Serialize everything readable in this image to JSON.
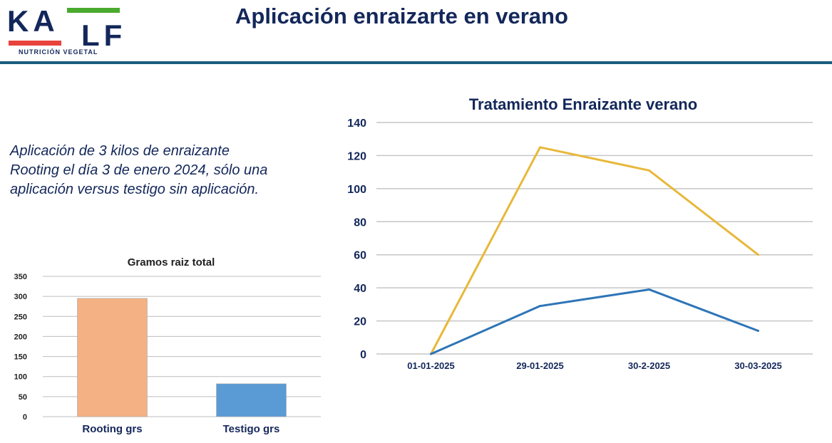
{
  "header": {
    "title": "Aplicación enraizarte en verano",
    "logo": {
      "brand": "KALF",
      "tagline": "NUTRICIÓN VEGETAL",
      "accent_green": "#4aaa2e",
      "accent_red": "#e8433c",
      "text_color": "#13275a"
    }
  },
  "description": "Aplicación de 3 kilos de enraizante Rooting el día 3 de enero 2024, sólo una aplicación versus testigo sin aplicación.",
  "chart_data": [
    {
      "type": "bar",
      "title": "Gramos raiz total",
      "categories": [
        "Rooting grs",
        "Testigo grs"
      ],
      "values": [
        295,
        82
      ],
      "colors": [
        "#f4b183",
        "#5b9bd5"
      ],
      "ylim": [
        0,
        350
      ],
      "yticks": [
        0,
        50,
        100,
        150,
        200,
        250,
        300,
        350
      ],
      "grid": true
    },
    {
      "type": "line",
      "title": "Tratamiento Enraizante verano",
      "categories": [
        "01-01-2025",
        "29-01-2025",
        "30-2-2025",
        "30-03-2025"
      ],
      "series": [
        {
          "values": [
            0,
            125,
            111,
            60
          ],
          "color": "#e8b83a"
        },
        {
          "values": [
            0,
            29,
            39,
            14
          ],
          "color": "#2e75b6"
        }
      ],
      "ylim": [
        0,
        140
      ],
      "yticks": [
        0,
        20,
        40,
        60,
        80,
        100,
        120,
        140
      ],
      "grid": true
    }
  ]
}
